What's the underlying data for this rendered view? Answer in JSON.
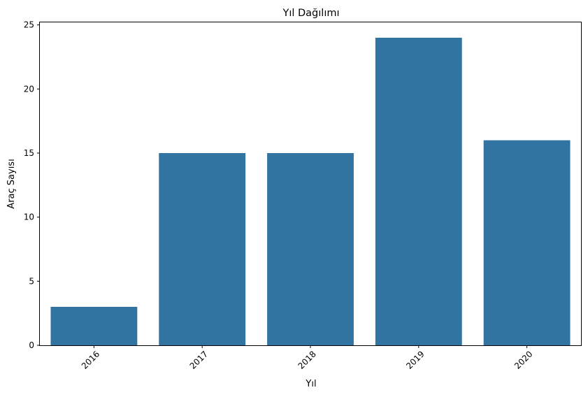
{
  "chart_data": {
    "type": "bar",
    "title": "Yıl Dağılımı",
    "xlabel": "Yıl",
    "ylabel": "Araç Sayısı",
    "categories": [
      "2016",
      "2017",
      "2018",
      "2019",
      "2020"
    ],
    "values": [
      3,
      15,
      15,
      24,
      16
    ],
    "ylim": [
      0,
      25.2
    ],
    "yticks": [
      0,
      5,
      10,
      15,
      20,
      25
    ],
    "xtick_rotation_deg": 45,
    "grid": false,
    "legend": "none",
    "bar_color": "#3274a1"
  }
}
